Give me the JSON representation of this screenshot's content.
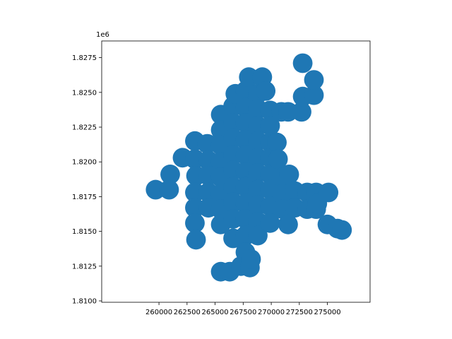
{
  "chart_data": {
    "type": "scatter",
    "title": "",
    "xlabel": "",
    "ylabel": "",
    "y_offset_label": "1e6",
    "xlim": [
      254900,
      278800
    ],
    "ylim": [
      1809900,
      1828700
    ],
    "grid": false,
    "legend": "none",
    "x_ticks": [
      260000,
      262500,
      265000,
      267500,
      270000,
      272500,
      275000
    ],
    "x_tick_labels": [
      "260000",
      "262500",
      "265000",
      "267500",
      "270000",
      "272500",
      "275000"
    ],
    "y_ticks": [
      1810000,
      1812500,
      1815000,
      1817500,
      1820000,
      1822500,
      1825000,
      1827500
    ],
    "y_tick_labels": [
      "1.8100",
      "1.8125",
      "1.8150",
      "1.8175",
      "1.8200",
      "1.8225",
      "1.8250",
      "1.8275"
    ],
    "marker_color": "#1f77b4",
    "marker_radius": 875,
    "points": [
      [
        259700,
        1818000
      ],
      [
        260900,
        1818000
      ],
      [
        261000,
        1819100
      ],
      [
        262100,
        1820300
      ],
      [
        263200,
        1821500
      ],
      [
        263200,
        1820200
      ],
      [
        263300,
        1819000
      ],
      [
        263200,
        1817800
      ],
      [
        263200,
        1816700
      ],
      [
        263200,
        1815600
      ],
      [
        263300,
        1814400
      ],
      [
        264300,
        1821300
      ],
      [
        264400,
        1820100
      ],
      [
        264400,
        1819000
      ],
      [
        264400,
        1817800
      ],
      [
        264400,
        1816700
      ],
      [
        265500,
        1823400
      ],
      [
        265500,
        1822300
      ],
      [
        265500,
        1821200
      ],
      [
        265500,
        1820000
      ],
      [
        265500,
        1818900
      ],
      [
        265500,
        1817700
      ],
      [
        265500,
        1816600
      ],
      [
        265500,
        1815500
      ],
      [
        265500,
        1812100
      ],
      [
        266300,
        1812100
      ],
      [
        266600,
        1824000
      ],
      [
        266600,
        1822800
      ],
      [
        266600,
        1821700
      ],
      [
        266600,
        1820500
      ],
      [
        266600,
        1819400
      ],
      [
        266600,
        1818200
      ],
      [
        266600,
        1817100
      ],
      [
        266600,
        1815900
      ],
      [
        266600,
        1814500
      ],
      [
        266800,
        1824900
      ],
      [
        267300,
        1812500
      ],
      [
        267700,
        1825100
      ],
      [
        267700,
        1823900
      ],
      [
        267700,
        1822800
      ],
      [
        267700,
        1821600
      ],
      [
        267700,
        1820500
      ],
      [
        267700,
        1819300
      ],
      [
        267700,
        1818200
      ],
      [
        267700,
        1817000
      ],
      [
        267700,
        1815900
      ],
      [
        267700,
        1814700
      ],
      [
        267700,
        1813500
      ],
      [
        268000,
        1826100
      ],
      [
        268100,
        1812400
      ],
      [
        268200,
        1813000
      ],
      [
        268800,
        1824900
      ],
      [
        268800,
        1823800
      ],
      [
        268800,
        1822600
      ],
      [
        268800,
        1821500
      ],
      [
        268800,
        1820300
      ],
      [
        268800,
        1819200
      ],
      [
        268800,
        1818000
      ],
      [
        268800,
        1816900
      ],
      [
        268800,
        1815700
      ],
      [
        268800,
        1814700
      ],
      [
        269200,
        1826100
      ],
      [
        269500,
        1825100
      ],
      [
        269900,
        1823700
      ],
      [
        269900,
        1822600
      ],
      [
        269900,
        1821400
      ],
      [
        269900,
        1820300
      ],
      [
        269900,
        1819100
      ],
      [
        269900,
        1818000
      ],
      [
        269900,
        1816800
      ],
      [
        269900,
        1815600
      ],
      [
        270500,
        1821400
      ],
      [
        270600,
        1820200
      ],
      [
        270900,
        1823600
      ],
      [
        271000,
        1818900
      ],
      [
        271000,
        1817700
      ],
      [
        271000,
        1816600
      ],
      [
        271500,
        1823600
      ],
      [
        271600,
        1819100
      ],
      [
        271500,
        1815500
      ],
      [
        272100,
        1817900
      ],
      [
        272100,
        1816700
      ],
      [
        272700,
        1823600
      ],
      [
        272800,
        1824700
      ],
      [
        272800,
        1827100
      ],
      [
        273200,
        1817800
      ],
      [
        273200,
        1816600
      ],
      [
        273800,
        1824800
      ],
      [
        273800,
        1825900
      ],
      [
        274000,
        1817800
      ],
      [
        274000,
        1816600
      ],
      [
        274100,
        1817000
      ],
      [
        275000,
        1815500
      ],
      [
        275100,
        1817800
      ],
      [
        275900,
        1815200
      ],
      [
        276300,
        1815100
      ]
    ]
  }
}
